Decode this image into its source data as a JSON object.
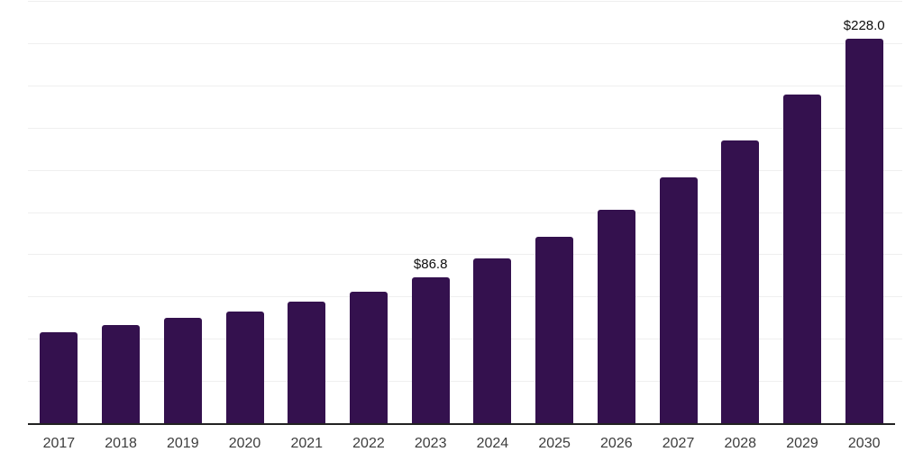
{
  "chart_data": {
    "type": "bar",
    "title": "",
    "xlabel": "",
    "ylabel": "",
    "categories": [
      "2017",
      "2018",
      "2019",
      "2020",
      "2021",
      "2022",
      "2023",
      "2024",
      "2025",
      "2026",
      "2027",
      "2028",
      "2029",
      "2030"
    ],
    "values": [
      54.4,
      58.7,
      63.0,
      66.7,
      72.5,
      78.4,
      86.8,
      98.2,
      111.0,
      127.0,
      146.2,
      168.0,
      195.2,
      228.0
    ],
    "data_labels": [
      {
        "category": "2023",
        "text": "$86.8"
      },
      {
        "category": "2030",
        "text": "$228.0"
      }
    ],
    "ylim": [
      0,
      250
    ],
    "gridline_step": 25,
    "grid": true,
    "y_axis_tick_labels": "none",
    "legend_position": "none",
    "colors": {
      "bar": "#34114e",
      "axis": "#222222",
      "gridline": "#efefef",
      "data_label": "#0d0d0d",
      "tick_label": "#3d3d3d",
      "background": "#ffffff"
    }
  }
}
